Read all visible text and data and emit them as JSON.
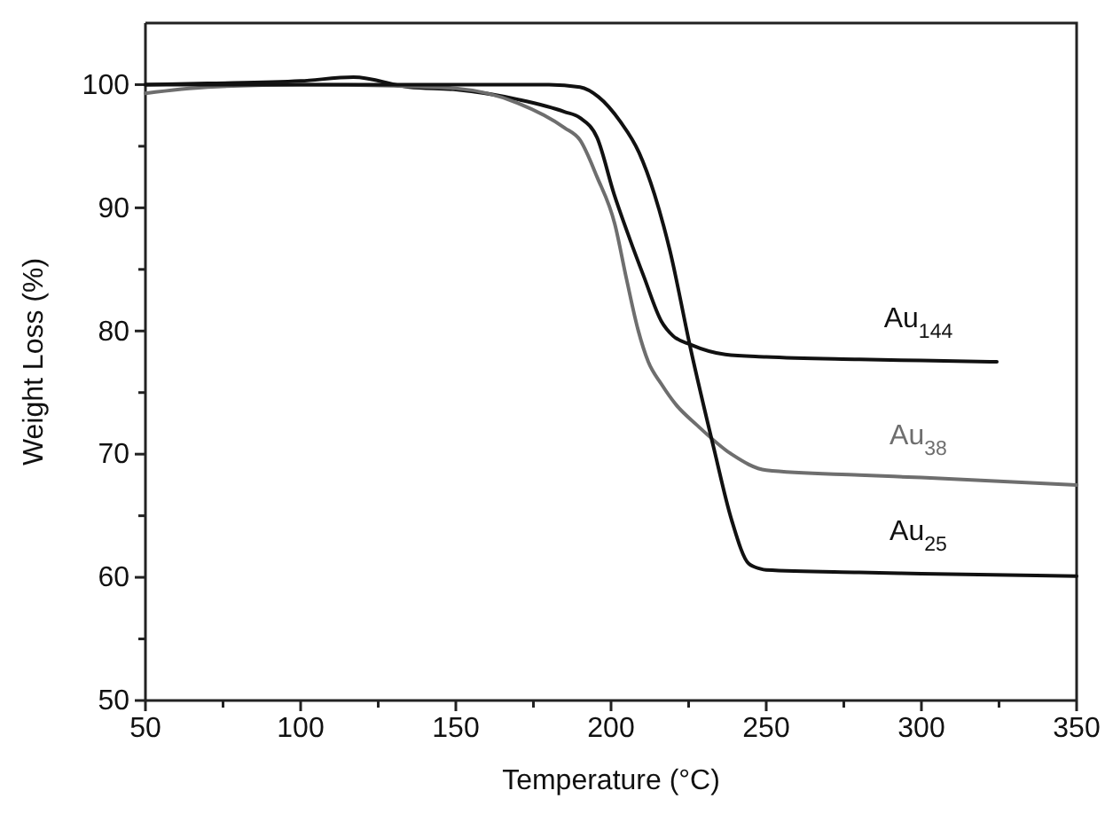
{
  "chart_data": {
    "type": "line",
    "xlabel": "Temperature (°C)",
    "ylabel": "Weight Loss (%)",
    "xlim": [
      50,
      350
    ],
    "ylim": [
      50,
      105
    ],
    "xticks": [
      50,
      {
        "value": 75,
        "label": null
      },
      100,
      {
        "value": 125,
        "label": null
      },
      150,
      {
        "value": 175,
        "label": null
      },
      200,
      {
        "value": 225,
        "label": null
      },
      250,
      {
        "value": 275,
        "label": null
      },
      300,
      {
        "value": 325,
        "label": null
      },
      350
    ],
    "yticks": [
      50,
      {
        "value": 55,
        "label": null
      },
      60,
      {
        "value": 65,
        "label": null
      },
      70,
      {
        "value": 75,
        "label": null
      },
      80,
      {
        "value": 85,
        "label": null
      },
      90,
      {
        "value": 95,
        "label": null
      },
      100
    ],
    "grid": false,
    "legend": false,
    "marker": "none",
    "line_style": "solid",
    "series": [
      {
        "name": "Au$_{144}$",
        "color": "#111111",
        "x": [
          50,
          70,
          100,
          117,
          135,
          150,
          170,
          185,
          190,
          195.5,
          201,
          206,
          210.6,
          216.2,
          220,
          225.6,
          236.8,
          250,
          280,
          300,
          324.3
        ],
        "values": [
          100,
          100.1,
          100.3,
          100.6,
          99.8,
          99.6,
          98.8,
          97.8,
          97.3,
          95.7,
          91.1,
          87.5,
          84.4,
          80.8,
          79.6,
          78.9,
          78.1,
          77.9,
          77.7,
          77.6,
          77.5
        ]
      },
      {
        "name": "Au$_{38}$",
        "color": "#6e6e6e",
        "x": [
          50,
          70,
          100,
          130,
          150,
          170,
          185,
          190,
          195.5,
          201.2,
          205,
          208.7,
          212,
          216.2,
          221,
          227.5,
          238.8,
          250,
          280,
          300,
          350
        ],
        "values": [
          99.3,
          99.8,
          100,
          99.9,
          99.7,
          98.5,
          96.5,
          95.5,
          92.5,
          88.7,
          84.2,
          80.1,
          77.5,
          75.7,
          74,
          72.4,
          70,
          68.7,
          68.3,
          68.1,
          67.5
        ]
      },
      {
        "name": "Au$_{25}$",
        "color": "#111111",
        "x": [
          50,
          100,
          150,
          180,
          190,
          196,
          203,
          209,
          214,
          219,
          225.6,
          233.1,
          238.8,
          244.4,
          248,
          250,
          280,
          300,
          350
        ],
        "values": [
          100,
          100,
          100,
          100,
          99.8,
          99,
          97,
          94.5,
          91.1,
          86.5,
          78.6,
          70.5,
          64.7,
          61.1,
          60.7,
          60.6,
          60.4,
          60.3,
          60.1
        ]
      }
    ]
  }
}
